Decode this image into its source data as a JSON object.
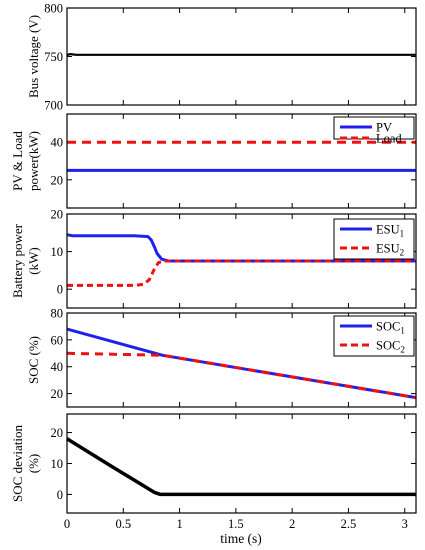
{
  "xlabel": "time (s)",
  "x_ticks": [
    0,
    0.5,
    1,
    1.5,
    2,
    2.5,
    3
  ],
  "chart_data": [
    {
      "type": "line",
      "ylabel": [
        "Bus voltage (V)"
      ],
      "xlim": [
        0,
        3.1
      ],
      "ylim": [
        700,
        800
      ],
      "y_ticks": [
        700,
        750,
        800
      ],
      "legend": null,
      "series": [
        {
          "color": "#000000",
          "width": 2.2,
          "dash": null,
          "points": [
            [
              0,
              751.5
            ],
            [
              0.03,
              752.5
            ],
            [
              0.08,
              751.8
            ],
            [
              3.1,
              751.8
            ]
          ]
        }
      ]
    },
    {
      "type": "line",
      "ylabel": [
        "PV & Load",
        "power(kW)"
      ],
      "xlim": [
        0,
        3.1
      ],
      "ylim": [
        5,
        55
      ],
      "y_ticks": [
        20,
        40
      ],
      "legend": "top-right",
      "series": [
        {
          "name": "PV",
          "color": "#2020ee",
          "width": 3,
          "dash": null,
          "points": [
            [
              0,
              25
            ],
            [
              3.1,
              25
            ]
          ]
        },
        {
          "name": "Load",
          "color": "#ee1111",
          "width": 3,
          "dash": "9,6",
          "points": [
            [
              0,
              40
            ],
            [
              3.1,
              40
            ]
          ]
        }
      ]
    },
    {
      "type": "line",
      "ylabel": [
        "Battery power",
        "(kW)"
      ],
      "xlim": [
        0,
        3.1
      ],
      "ylim": [
        -5,
        20
      ],
      "y_ticks": [
        0,
        10,
        20
      ],
      "legend": "top-right",
      "series": [
        {
          "name": "ESU",
          "sub": "1",
          "color": "#2020ee",
          "width": 3,
          "dash": null,
          "points": [
            [
              0,
              14.5
            ],
            [
              0.05,
              14.2
            ],
            [
              0.6,
              14.2
            ],
            [
              0.72,
              14
            ],
            [
              0.75,
              13
            ],
            [
              0.78,
              11
            ],
            [
              0.8,
              9.5
            ],
            [
              0.84,
              8
            ],
            [
              0.9,
              7.5
            ],
            [
              3.1,
              7.5
            ]
          ]
        },
        {
          "name": "ESU",
          "sub": "2",
          "color": "#ee1111",
          "width": 3,
          "dash": "6,4",
          "points": [
            [
              0,
              1
            ],
            [
              0.6,
              1
            ],
            [
              0.68,
              1.3
            ],
            [
              0.73,
              2.5
            ],
            [
              0.77,
              5
            ],
            [
              0.81,
              7
            ],
            [
              0.85,
              7.5
            ],
            [
              3.1,
              7.5
            ]
          ]
        }
      ]
    },
    {
      "type": "line",
      "ylabel": [
        "SOC (%)"
      ],
      "xlim": [
        0,
        3.1
      ],
      "ylim": [
        10,
        80
      ],
      "y_ticks": [
        20,
        40,
        60,
        80
      ],
      "legend": "top-right",
      "series": [
        {
          "name": "SOC",
          "sub": "1",
          "color": "#2020ee",
          "width": 3,
          "dash": null,
          "points": [
            [
              0,
              68
            ],
            [
              0.85,
              48.5
            ],
            [
              3.1,
              17
            ]
          ]
        },
        {
          "name": "SOC",
          "sub": "2",
          "color": "#ee1111",
          "width": 3,
          "dash": "8,6",
          "points": [
            [
              0,
              50
            ],
            [
              0.85,
              48.5
            ],
            [
              3.1,
              17
            ]
          ]
        }
      ]
    },
    {
      "type": "line",
      "ylabel": [
        "SOC deviation",
        "(%)"
      ],
      "xlim": [
        0,
        3.1
      ],
      "ylim": [
        -6,
        26
      ],
      "y_ticks": [
        0,
        10,
        20
      ],
      "legend": null,
      "series": [
        {
          "color": "#000000",
          "width": 3.5,
          "dash": null,
          "points": [
            [
              0,
              18
            ],
            [
              0.4,
              9
            ],
            [
              0.78,
              0.6
            ],
            [
              0.83,
              0
            ],
            [
              3.1,
              0
            ]
          ]
        }
      ]
    }
  ]
}
